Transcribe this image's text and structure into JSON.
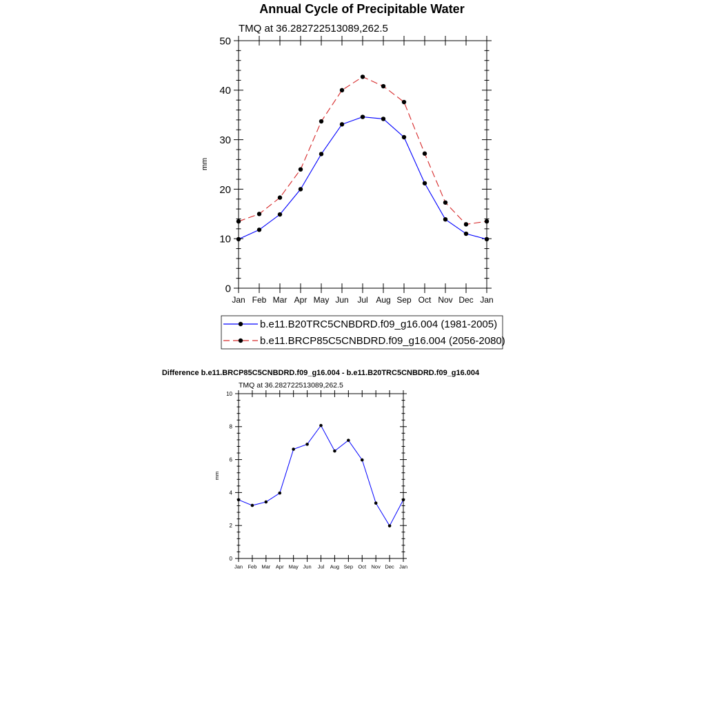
{
  "chart_data": [
    {
      "type": "line",
      "title": "Annual Cycle of Precipitable Water",
      "subtitle": "TMQ at 36.282722513089,262.5",
      "xlabel": "",
      "ylabel": "mm",
      "categories": [
        "Jan",
        "Feb",
        "Mar",
        "Apr",
        "May",
        "Jun",
        "Jul",
        "Aug",
        "Sep",
        "Oct",
        "Nov",
        "Dec",
        "Jan"
      ],
      "ylim": [
        0,
        50
      ],
      "yticks": [
        0,
        10,
        20,
        30,
        40,
        50
      ],
      "grid": false,
      "legend_placement": "bottom",
      "series": [
        {
          "name": "b.e11.B20TRC5CNBDRD.f09_g16.004 (1981-2005)",
          "color": "#0000ff",
          "dash": "solid",
          "values": [
            9.9,
            11.8,
            14.9,
            20.0,
            27.1,
            33.1,
            34.6,
            34.2,
            30.5,
            21.2,
            13.9,
            11.0,
            9.9
          ]
        },
        {
          "name": "b.e11.BRCP85C5CNBDRD.f09_g16.004 (2056-2080)",
          "color": "#d62728",
          "dash": "dashed",
          "values": [
            13.5,
            15.0,
            18.3,
            24.0,
            33.7,
            40.0,
            42.7,
            40.8,
            37.6,
            27.2,
            17.3,
            12.9,
            13.5
          ]
        }
      ]
    },
    {
      "type": "line",
      "title": "Difference b.e11.BRCP85C5CNBDRD.f09_g16.004 - b.e11.B20TRC5CNBDRD.f09_g16.004",
      "subtitle": "TMQ at 36.282722513089,262.5",
      "xlabel": "",
      "ylabel": "mm",
      "categories": [
        "Jan",
        "Feb",
        "Mar",
        "Apr",
        "May",
        "Jun",
        "Jul",
        "Aug",
        "Sep",
        "Oct",
        "Nov",
        "Dec",
        "Jan"
      ],
      "ylim": [
        0,
        10
      ],
      "yticks": [
        0,
        2,
        4,
        6,
        8,
        10
      ],
      "grid": false,
      "series": [
        {
          "color": "#0000ff",
          "dash": "solid",
          "values": [
            3.56,
            3.22,
            3.43,
            3.97,
            6.63,
            6.93,
            8.07,
            6.52,
            7.17,
            5.98,
            3.36,
            1.98,
            3.56
          ]
        }
      ]
    }
  ]
}
